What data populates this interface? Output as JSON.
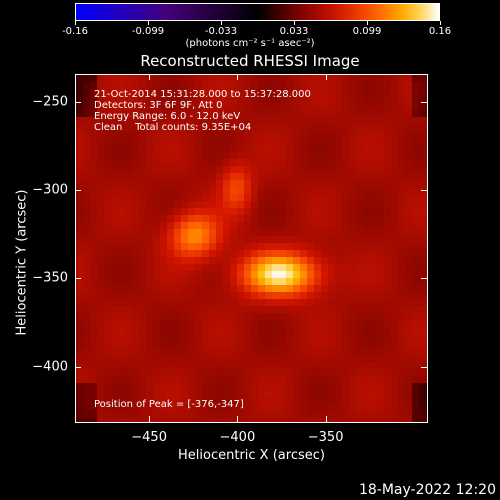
{
  "colorbar": {
    "ticks": [
      "-0.16",
      "-0.099",
      "-0.033",
      "0.033",
      "0.099",
      "0.16"
    ],
    "unit": "(photons cm⁻² s⁻¹ asec⁻²)"
  },
  "title": "Reconstructed RHESSI Image",
  "annotations": {
    "line1": "21-Oct-2014 15:31:28.000 to 15:37:28.000",
    "line2": "Detectors: 3F 6F 9F, Att 0",
    "line3": "Energy Range: 6.0 - 12.0 keV",
    "line4": "Clean    Total counts: 9.35E+04",
    "peak": "Position of Peak = [-376,-347]"
  },
  "footer": "18-May-2022 12:20",
  "chart_data": {
    "type": "heatmap",
    "title": "Reconstructed RHESSI Image",
    "xlabel": "Heliocentric X (arcsec)",
    "ylabel": "Heliocentric Y (arcsec)",
    "xlim": [
      -492,
      -292
    ],
    "ylim": [
      -432,
      -234
    ],
    "xticks": [
      -450,
      -400,
      -350
    ],
    "yticks": [
      -250,
      -300,
      -350,
      -400
    ],
    "colorbar_range": [
      -0.16,
      0.16
    ],
    "sources": [
      {
        "x": -376,
        "y": -347,
        "peak": 0.16
      },
      {
        "x": -425,
        "y": -325,
        "peak": 0.12
      },
      {
        "x": -401,
        "y": -298,
        "peak": 0.09
      }
    ]
  }
}
